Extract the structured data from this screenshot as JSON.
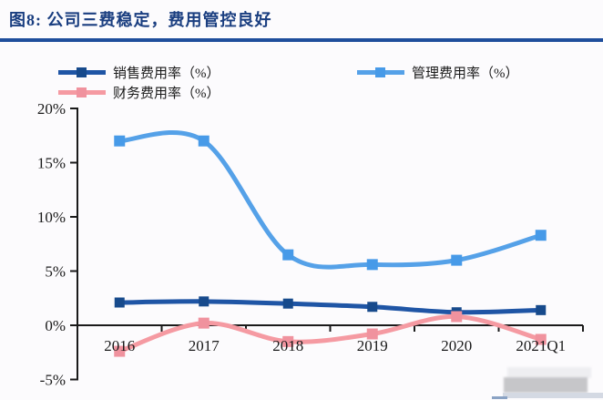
{
  "page": {
    "background": "#fcfbfd"
  },
  "header": {
    "title": "图8: 公司三费稳定，费用管控良好",
    "title_color": "#1a3e80",
    "rule_color": "#1f4e9c"
  },
  "chart_data": {
    "type": "line",
    "smoothed": true,
    "title": "公司三费稳定，费用管控良好",
    "categories": [
      "2016",
      "2017",
      "2018",
      "2019",
      "2020",
      "2021Q1"
    ],
    "series": [
      {
        "name": "销售费用率（%）",
        "color": "#1f55a5",
        "marker_color": "#174a8c",
        "marker_size": 11,
        "values": [
          2.1,
          2.2,
          2.0,
          1.7,
          1.2,
          1.4
        ]
      },
      {
        "name": "管理费用率（%）",
        "color": "#55a1e8",
        "marker_color": "#479ae8",
        "marker_size": 12,
        "values": [
          17.0,
          17.0,
          6.5,
          5.6,
          6.0,
          8.3
        ]
      },
      {
        "name": "财务费用率（%）",
        "color": "#f59aa2",
        "marker_color": "#f0929e",
        "marker_size": 12,
        "values": [
          -2.4,
          0.2,
          -1.5,
          -0.8,
          0.8,
          -1.3
        ]
      }
    ],
    "ylim": [
      -5,
      20
    ],
    "y_ticks": [
      {
        "value": 20,
        "label": "20%"
      },
      {
        "value": 15,
        "label": "15%"
      },
      {
        "value": 10,
        "label": "10%"
      },
      {
        "value": 5,
        "label": "5%"
      },
      {
        "value": 0,
        "label": "0%"
      },
      {
        "value": -5,
        "label": "-5%"
      }
    ],
    "xlabel": "",
    "ylabel": "",
    "grid": false,
    "legend_position": "top",
    "axis_color": "#1a1a1a"
  }
}
